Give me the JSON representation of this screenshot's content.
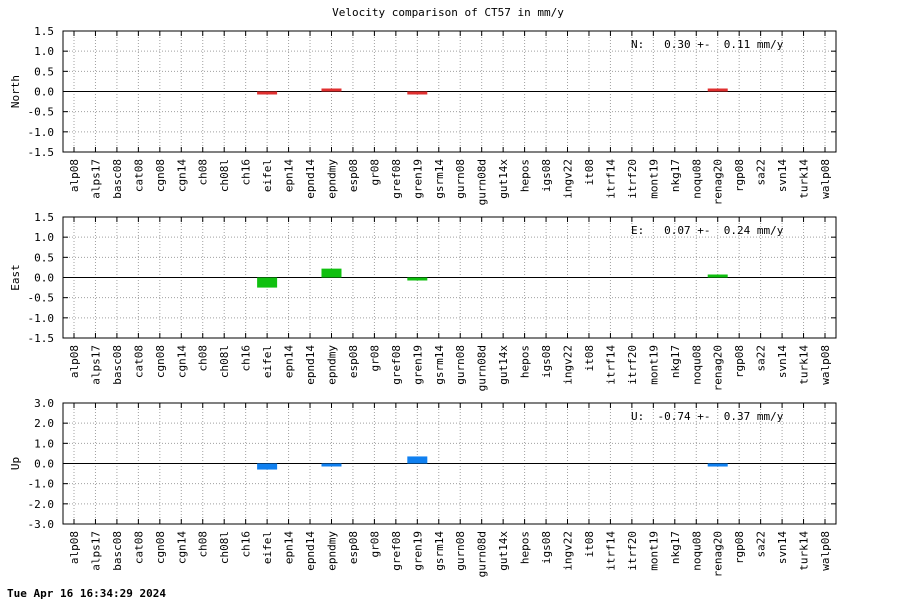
{
  "chart_data": {
    "title": "Velocity comparison of CT57 in mm/y",
    "type": "bar",
    "categories": [
      "alp08",
      "alps17",
      "basc08",
      "cat08",
      "cgn08",
      "cgn14",
      "ch08",
      "ch08l",
      "ch16",
      "eifel",
      "epn14",
      "epnd14",
      "epndmy",
      "esp08",
      "gr08",
      "gref08",
      "gren19",
      "gsrm14",
      "gurn08",
      "gurn08d",
      "gut14x",
      "hepos",
      "igs08",
      "ingv22",
      "it08",
      "itrf14",
      "itrf20",
      "mont19",
      "nkg17",
      "noqu08",
      "renag20",
      "rgp08",
      "sa22",
      "svn14",
      "turk14",
      "walp08"
    ],
    "grid": true,
    "panels": [
      {
        "ylabel": "North",
        "ylim": [
          -1.5,
          1.5
        ],
        "yticks": [
          "-1.5",
          "-1.0",
          "-0.5",
          "0.0",
          "0.5",
          "1.0",
          "1.5"
        ],
        "annotation": "N:   0.30 +-  0.11 mm/y",
        "color": "#e03030",
        "values": [
          null,
          null,
          null,
          null,
          null,
          null,
          null,
          null,
          null,
          -0.05,
          null,
          null,
          0.07,
          null,
          null,
          null,
          -0.05,
          null,
          null,
          null,
          null,
          null,
          null,
          null,
          null,
          null,
          null,
          null,
          null,
          null,
          0.02,
          null,
          null,
          null,
          null,
          null
        ]
      },
      {
        "ylabel": "East",
        "ylim": [
          -1.5,
          1.5
        ],
        "yticks": [
          "-1.5",
          "-1.0",
          "-0.5",
          "0.0",
          "0.5",
          "1.0",
          "1.5"
        ],
        "annotation": "E:   0.07 +-  0.24 mm/y",
        "color": "#10c010",
        "values": [
          null,
          null,
          null,
          null,
          null,
          null,
          null,
          null,
          null,
          -0.25,
          null,
          null,
          0.22,
          null,
          null,
          null,
          -0.02,
          null,
          null,
          null,
          null,
          null,
          null,
          null,
          null,
          null,
          null,
          null,
          null,
          null,
          0.06,
          null,
          null,
          null,
          null,
          null
        ]
      },
      {
        "ylabel": "Up",
        "ylim": [
          -3,
          3
        ],
        "yticks": [
          "-3.0",
          "-2.0",
          "-1.0",
          "0.0",
          "1.0",
          "2.0",
          "3.0"
        ],
        "annotation": "U:  -0.74 +-  0.37 mm/y",
        "color": "#1080f0",
        "values": [
          null,
          null,
          null,
          null,
          null,
          null,
          null,
          null,
          null,
          -0.3,
          null,
          null,
          -0.1,
          null,
          null,
          null,
          0.35,
          null,
          null,
          null,
          null,
          null,
          null,
          null,
          null,
          null,
          null,
          null,
          null,
          null,
          -0.15,
          null,
          null,
          null,
          null,
          null
        ]
      }
    ]
  },
  "footer": {
    "timestamp": "Tue Apr 16 16:34:29 2024"
  }
}
